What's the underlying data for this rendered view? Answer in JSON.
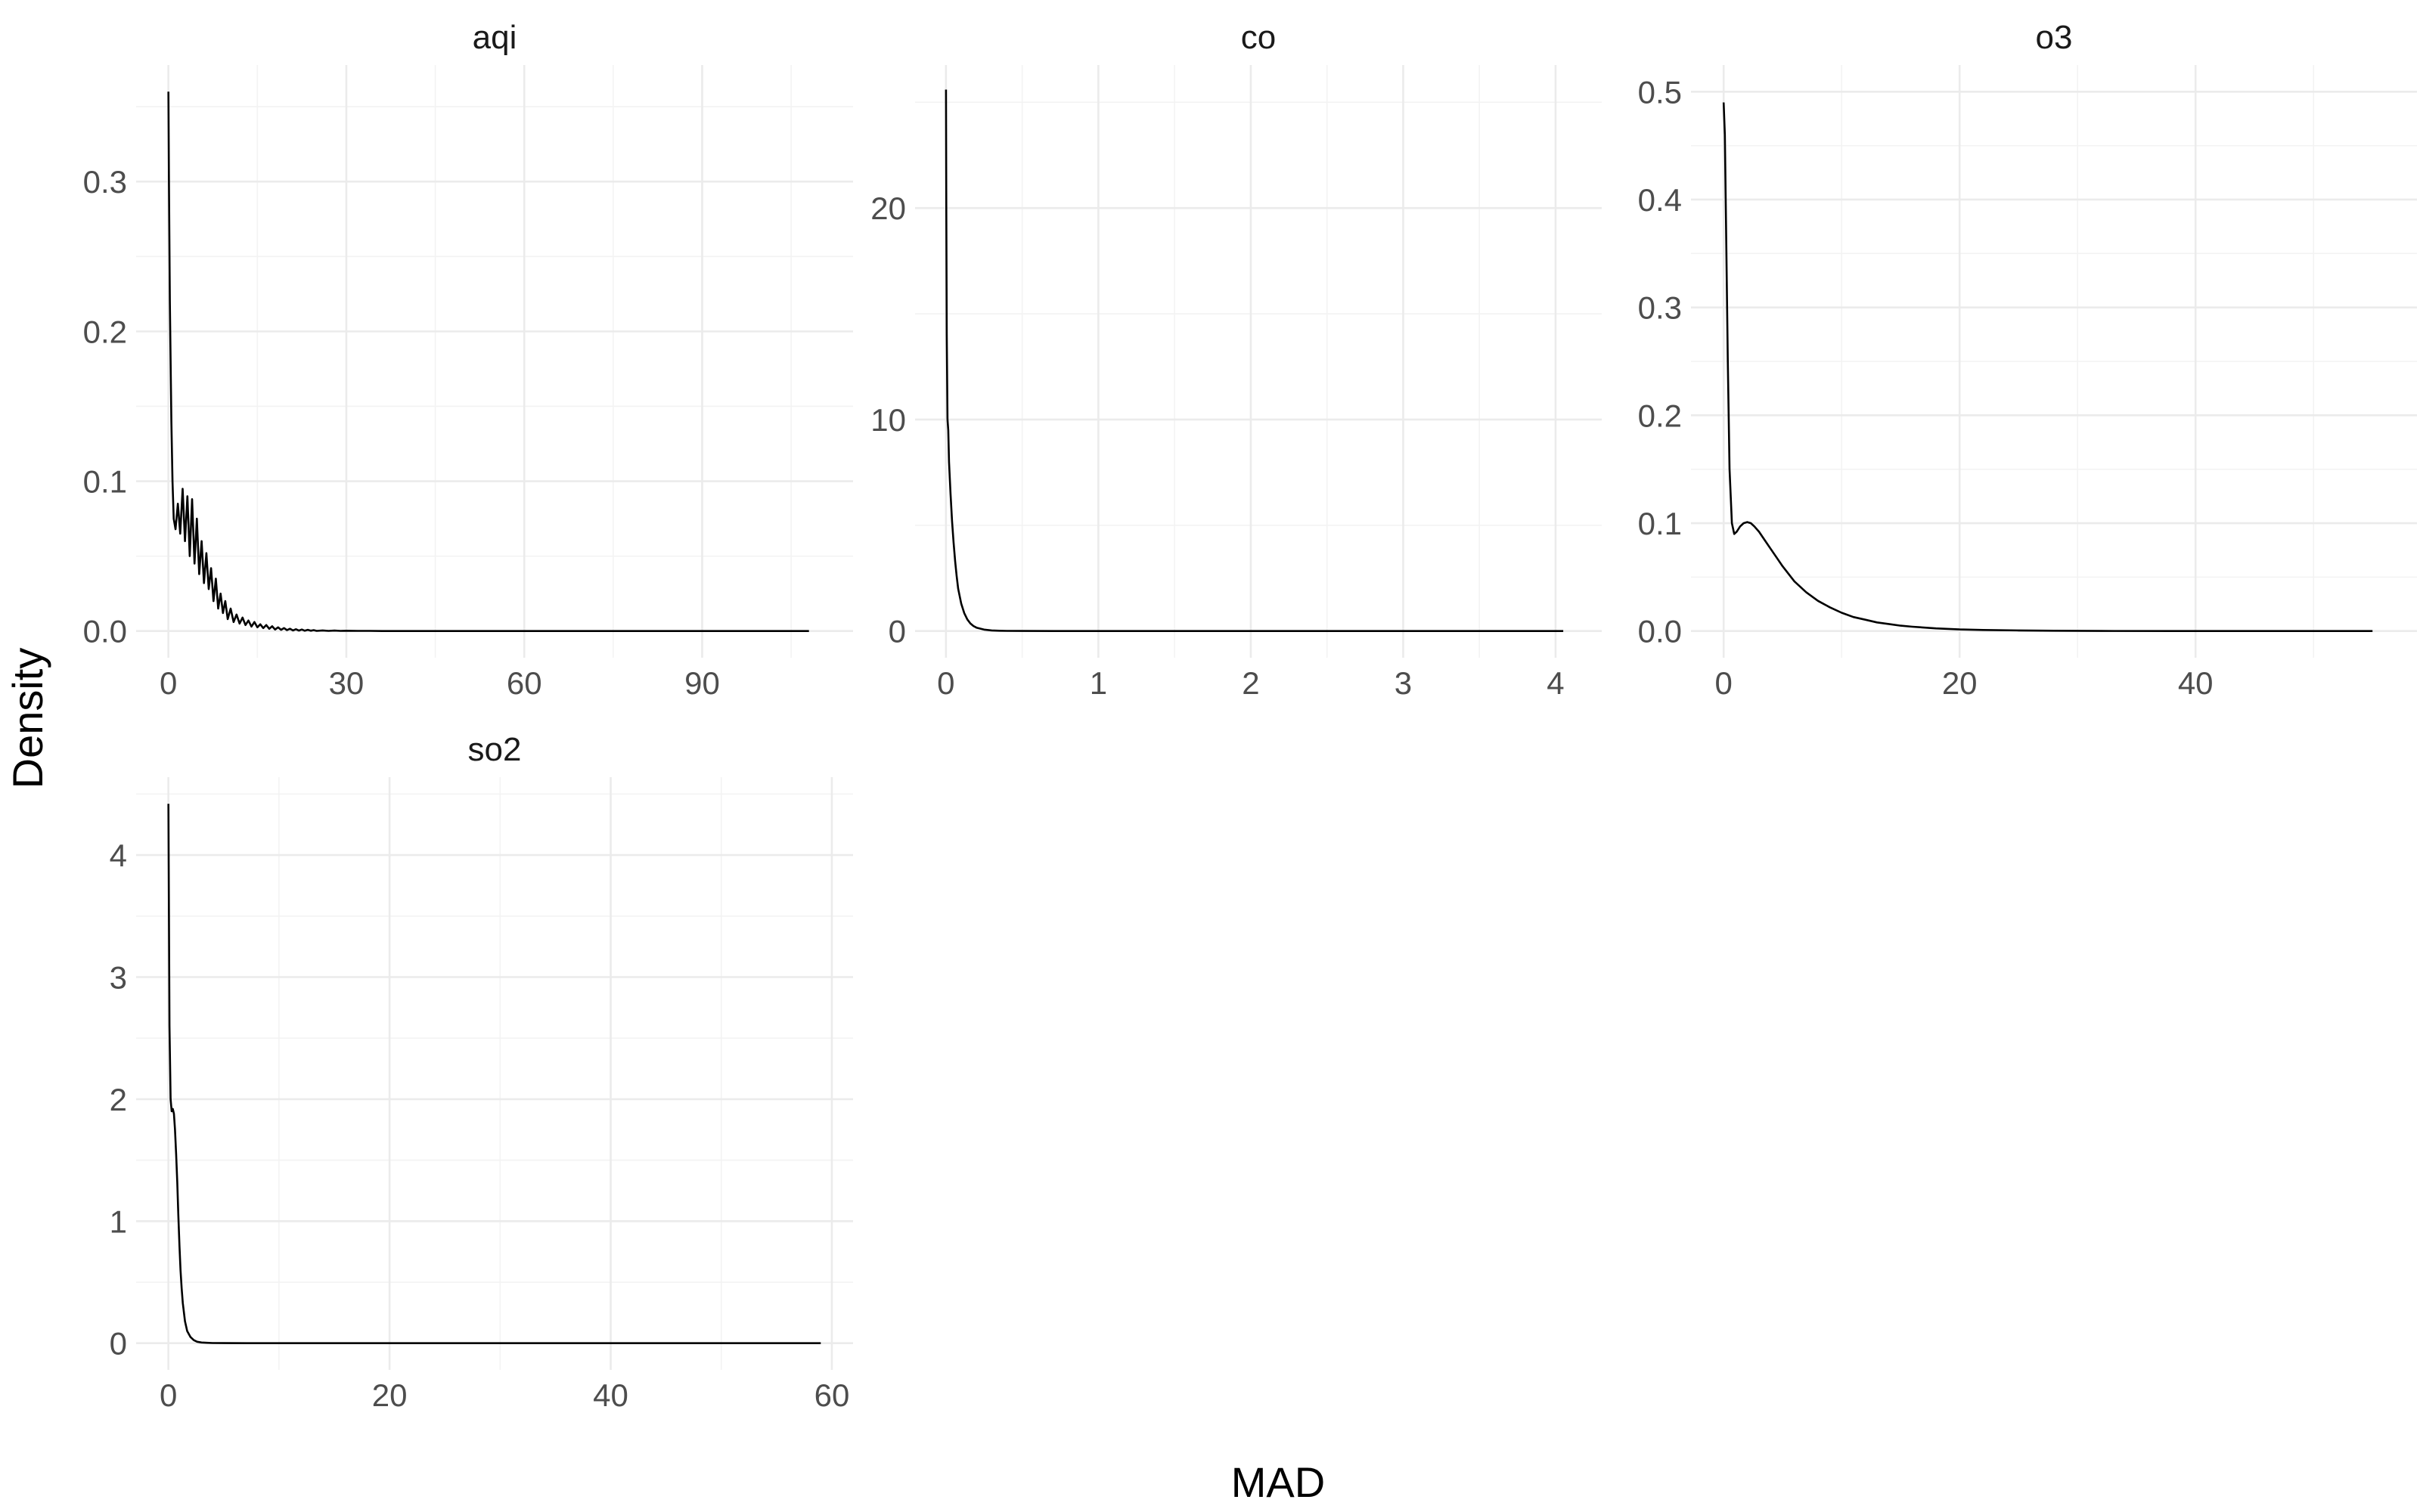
{
  "chart_data": {
    "type": "line",
    "xlabel": "MAD",
    "ylabel": "Density",
    "panels": [
      {
        "name": "aqi",
        "xlim": [
          0,
          110
        ],
        "ylim": [
          0,
          0.36
        ],
        "x_ticks": [
          0,
          30,
          60,
          90
        ],
        "x_tick_labels": [
          "0",
          "30",
          "60",
          "90"
        ],
        "y_ticks": [
          0,
          0.1,
          0.2,
          0.3
        ],
        "y_tick_labels": [
          "0.0",
          "0.1",
          "0.2",
          "0.3"
        ],
        "x": [
          0,
          0.1,
          0.25,
          0.5,
          0.7,
          0.9,
          1.2,
          1.6,
          2.0,
          2.4,
          2.8,
          3.2,
          3.6,
          4.0,
          4.4,
          4.8,
          5.2,
          5.6,
          6.0,
          6.4,
          6.8,
          7.2,
          7.6,
          8.0,
          8.4,
          8.8,
          9.2,
          9.6,
          10.0,
          10.5,
          11.0,
          11.5,
          12.0,
          12.5,
          13.0,
          13.5,
          14.0,
          14.5,
          15.0,
          15.5,
          16.0,
          16.5,
          17.0,
          17.5,
          18.0,
          18.5,
          19.0,
          19.5,
          20.0,
          20.5,
          21.0,
          21.5,
          22.0,
          22.5,
          23.0,
          23.5,
          24.0,
          24.5,
          25.0,
          26.0,
          27.0,
          28.0,
          29.0,
          30.0,
          32.0,
          34.0,
          36.0,
          40.0,
          45.0,
          50.0,
          60.0,
          80.0,
          108.0
        ],
        "y": [
          0.36,
          0.3,
          0.22,
          0.14,
          0.1,
          0.075,
          0.068,
          0.085,
          0.065,
          0.095,
          0.06,
          0.09,
          0.05,
          0.088,
          0.045,
          0.075,
          0.038,
          0.06,
          0.032,
          0.052,
          0.028,
          0.042,
          0.02,
          0.035,
          0.015,
          0.025,
          0.012,
          0.02,
          0.008,
          0.015,
          0.006,
          0.011,
          0.005,
          0.009,
          0.004,
          0.007,
          0.003,
          0.006,
          0.0025,
          0.0045,
          0.002,
          0.004,
          0.0015,
          0.0032,
          0.001,
          0.0025,
          0.0008,
          0.002,
          0.0006,
          0.0015,
          0.0004,
          0.0012,
          0.0003,
          0.001,
          0.0002,
          0.0008,
          0.0002,
          0.0006,
          0.0001,
          0.0004,
          0.0001,
          0.0003,
          0.0001,
          0.0002,
          0.0001,
          0.0001,
          0,
          0,
          0,
          0,
          0,
          0,
          0
        ]
      },
      {
        "name": "co",
        "xlim": [
          0,
          4.1
        ],
        "ylim": [
          0,
          25.5
        ],
        "x_ticks": [
          0,
          1,
          2,
          3,
          4
        ],
        "x_tick_labels": [
          "0",
          "1",
          "2",
          "3",
          "4"
        ],
        "y_ticks": [
          0,
          10,
          20
        ],
        "y_tick_labels": [
          "0",
          "10",
          "20"
        ],
        "x": [
          0,
          0.002,
          0.005,
          0.01,
          0.012,
          0.015,
          0.02,
          0.03,
          0.04,
          0.05,
          0.06,
          0.07,
          0.08,
          0.1,
          0.12,
          0.14,
          0.16,
          0.18,
          0.2,
          0.25,
          0.3,
          0.35,
          0.4,
          0.5,
          0.7,
          1.0,
          2.0,
          3.0,
          4.05
        ],
        "y": [
          25.6,
          20.0,
          14.0,
          10.0,
          9.8,
          9.5,
          8.0,
          6.5,
          5.2,
          4.2,
          3.3,
          2.6,
          2.0,
          1.3,
          0.85,
          0.55,
          0.36,
          0.24,
          0.16,
          0.07,
          0.03,
          0.015,
          0.008,
          0.003,
          0.001,
          0,
          0,
          0,
          0
        ]
      },
      {
        "name": "o3",
        "xlim": [
          0,
          56
        ],
        "ylim": [
          0,
          0.5
        ],
        "x_ticks": [
          0,
          20,
          40
        ],
        "x_tick_labels": [
          "0",
          "20",
          "40"
        ],
        "y_ticks": [
          0,
          0.1,
          0.2,
          0.3,
          0.4,
          0.5
        ],
        "y_tick_labels": [
          "0.0",
          "0.1",
          "0.2",
          "0.3",
          "0.4",
          "0.5"
        ],
        "x": [
          0,
          0.1,
          0.2,
          0.35,
          0.5,
          0.7,
          0.9,
          1.1,
          1.4,
          1.7,
          2.0,
          2.3,
          2.6,
          3.0,
          3.5,
          4.0,
          4.5,
          5.0,
          5.5,
          6.0,
          7.0,
          8.0,
          9.0,
          10.0,
          11.0,
          12.0,
          13.0,
          14.0,
          15.0,
          16.0,
          18.0,
          20.0,
          22.0,
          25.0,
          28.0,
          32.0,
          38.0,
          45.0,
          55.0
        ],
        "y": [
          0.49,
          0.46,
          0.38,
          0.25,
          0.15,
          0.1,
          0.09,
          0.092,
          0.097,
          0.1,
          0.101,
          0.1,
          0.097,
          0.092,
          0.084,
          0.076,
          0.068,
          0.06,
          0.053,
          0.046,
          0.036,
          0.028,
          0.022,
          0.017,
          0.013,
          0.0105,
          0.008,
          0.0065,
          0.005,
          0.004,
          0.0025,
          0.0015,
          0.001,
          0.0006,
          0.0003,
          0.0001,
          0,
          0,
          0
        ]
      },
      {
        "name": "so2",
        "xlim": [
          0,
          59
        ],
        "ylim": [
          0,
          4.42
        ],
        "x_ticks": [
          0,
          20,
          40,
          60
        ],
        "x_tick_labels": [
          "0",
          "20",
          "40",
          "60"
        ],
        "y_ticks": [
          0,
          1,
          2,
          3,
          4
        ],
        "y_tick_labels": [
          "0",
          "1",
          "2",
          "3",
          "4"
        ],
        "x": [
          0,
          0.05,
          0.1,
          0.2,
          0.3,
          0.4,
          0.5,
          0.6,
          0.7,
          0.8,
          0.9,
          1.0,
          1.1,
          1.2,
          1.3,
          1.5,
          1.7,
          2.0,
          2.3,
          2.6,
          3.0,
          3.5,
          4.0,
          5.0,
          7.0,
          10.0,
          20.0,
          40.0,
          59.0
        ],
        "y": [
          4.42,
          3.5,
          2.6,
          2.0,
          1.9,
          1.92,
          1.88,
          1.75,
          1.55,
          1.32,
          1.05,
          0.8,
          0.6,
          0.45,
          0.33,
          0.18,
          0.1,
          0.05,
          0.025,
          0.012,
          0.006,
          0.003,
          0.0015,
          0.0005,
          0,
          0,
          0,
          0,
          0
        ]
      }
    ]
  }
}
